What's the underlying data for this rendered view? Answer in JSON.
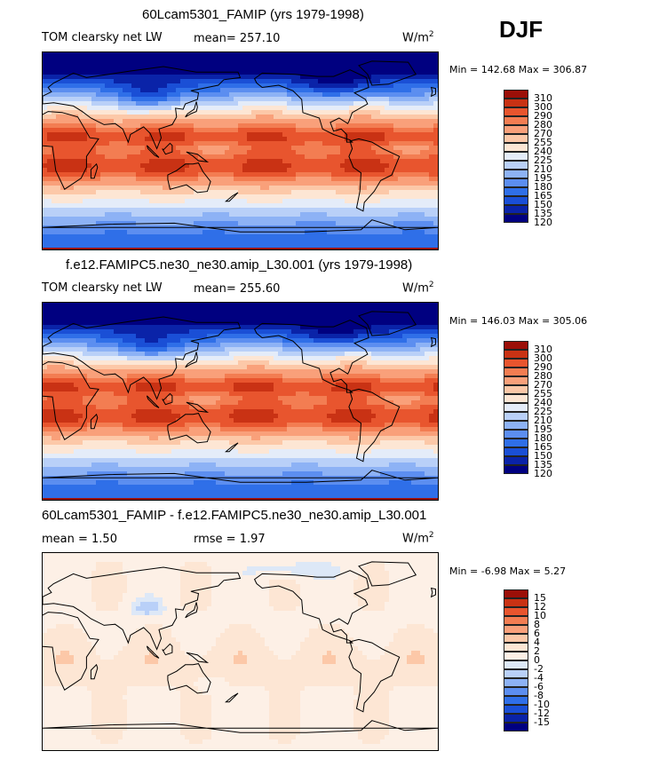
{
  "season": "DJF",
  "chart_data": [
    {
      "type": "heatmap",
      "title": "60Lcam5301_FAMIP (yrs 1979-1998)",
      "variable": "TOM clearsky net LW",
      "mean_label": "mean= 257.10",
      "units": "W/m",
      "units_exp": "2",
      "minmax": "Min = 142.68 Max = 306.87",
      "min": 142.68,
      "max": 306.87,
      "mean": 257.1,
      "levels": [
        "120",
        "135",
        "150",
        "165",
        "180",
        "195",
        "210",
        "225",
        "240",
        "255",
        "270",
        "280",
        "290",
        "300",
        "310"
      ],
      "colors": [
        "#000080",
        "#0a23a8",
        "#1a4fd6",
        "#2f6fe8",
        "#5c8ef0",
        "#8db2f5",
        "#b9d0f8",
        "#e4ecf9",
        "#fde6d4",
        "#fcc8a8",
        "#f9a07a",
        "#f37d52",
        "#e8552e",
        "#c93214",
        "#9b0f08"
      ],
      "pattern": "abs"
    },
    {
      "type": "heatmap",
      "title": "f.e12.FAMIPC5.ne30_ne30.amip_L30.001 (yrs 1979-1998)",
      "variable": "TOM clearsky net LW",
      "mean_label": "mean= 255.60",
      "units": "W/m",
      "units_exp": "2",
      "minmax": "Min = 146.03 Max = 305.06",
      "min": 146.03,
      "max": 305.06,
      "mean": 255.6,
      "levels": [
        "120",
        "135",
        "150",
        "165",
        "180",
        "195",
        "210",
        "225",
        "240",
        "255",
        "270",
        "280",
        "290",
        "300",
        "310"
      ],
      "colors": [
        "#000080",
        "#0a23a8",
        "#1a4fd6",
        "#2f6fe8",
        "#5c8ef0",
        "#8db2f5",
        "#b9d0f8",
        "#e4ecf9",
        "#fde6d4",
        "#fcc8a8",
        "#f9a07a",
        "#f37d52",
        "#e8552e",
        "#c93214",
        "#9b0f08"
      ],
      "pattern": "abs"
    },
    {
      "type": "heatmap",
      "title": "60Lcam5301_FAMIP - f.e12.FAMIPC5.ne30_ne30.amip_L30.001",
      "mean_label": "mean =   1.50",
      "rmse_label": "rmse =   1.97",
      "units": "W/m",
      "units_exp": "2",
      "minmax": "Min =  -6.98 Max =   5.27",
      "min": -6.98,
      "max": 5.27,
      "mean": 1.5,
      "rmse": 1.97,
      "levels": [
        "15",
        "12",
        "10",
        "8",
        "6",
        "4",
        "2",
        "0",
        "-2",
        "-4",
        "-6",
        "-8",
        "-10",
        "-12",
        "-15"
      ],
      "colors": [
        "#9b0f08",
        "#c93214",
        "#e8552e",
        "#f37d52",
        "#f9a07a",
        "#fcc8a8",
        "#fde6d4",
        "#fdf0e6",
        "#dde8f7",
        "#b9d0f8",
        "#8db2f5",
        "#5c8ef0",
        "#2f6fe8",
        "#1a4fd6",
        "#0a23a8",
        "#000080"
      ],
      "pattern": "diff"
    }
  ]
}
